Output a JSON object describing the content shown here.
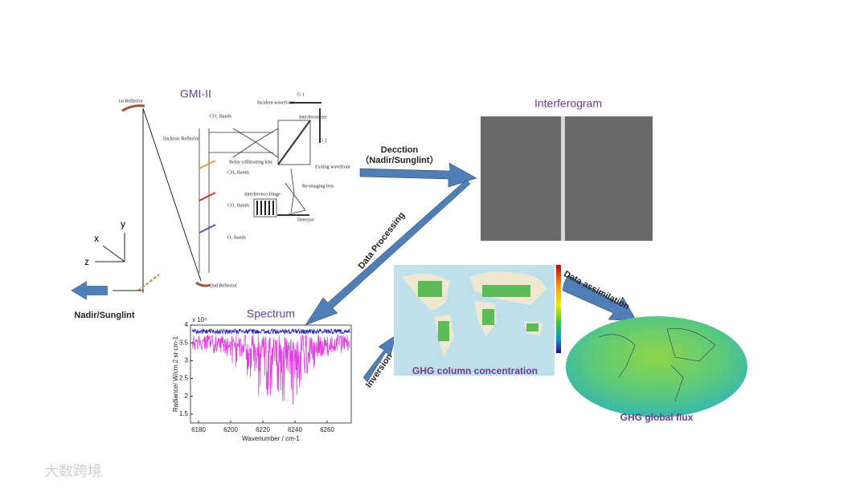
{
  "instrument": {
    "title": "GMI-II",
    "first_reflector": "1st Reflector",
    "second_reflector": "2nd Reflector",
    "dichroic": "Dichroic Reflector",
    "bands": [
      "CO₂ Bands",
      "CH₄ Bands",
      "CO₂ Bands",
      "O₂ Bands"
    ],
    "optics": {
      "incident": "Incident wavefront",
      "g1": "G 1",
      "g2": "G 2",
      "interferometer": "Interferometer",
      "relay": "Relay collimating lens",
      "exiting": "Exiting wavefront",
      "reimaging": "Re-imaging lens",
      "fringe": "Interference fringe",
      "detector": "Detector"
    },
    "axes": [
      "y",
      "x",
      "z"
    ],
    "view": "Nadir/Sunglint"
  },
  "interferogram": {
    "title": "Interferogram",
    "detection": "Decction",
    "mode": "（Nadir/Sunglint）"
  },
  "processing": "Data Processing",
  "spectrum": {
    "title": "Spectrum",
    "xlabel": "Wavenumber / cm-1",
    "ylabel": "Radiance/ W/cm 2 sr cm-1",
    "scale": "x 10⁴",
    "xlim": [
      6175,
      6275
    ],
    "ylim": [
      1.25,
      4
    ],
    "xticks": [
      6180,
      6200,
      6220,
      6240,
      6260
    ],
    "yticks": [
      1.5,
      2,
      2.5,
      3,
      3.5,
      4
    ]
  },
  "inversion": "Inversion",
  "column": {
    "title": "GHG column concentration"
  },
  "assimilation": "Data assimilation",
  "flux": {
    "title": "GHG global flux"
  },
  "watermark": "大数跨境"
}
